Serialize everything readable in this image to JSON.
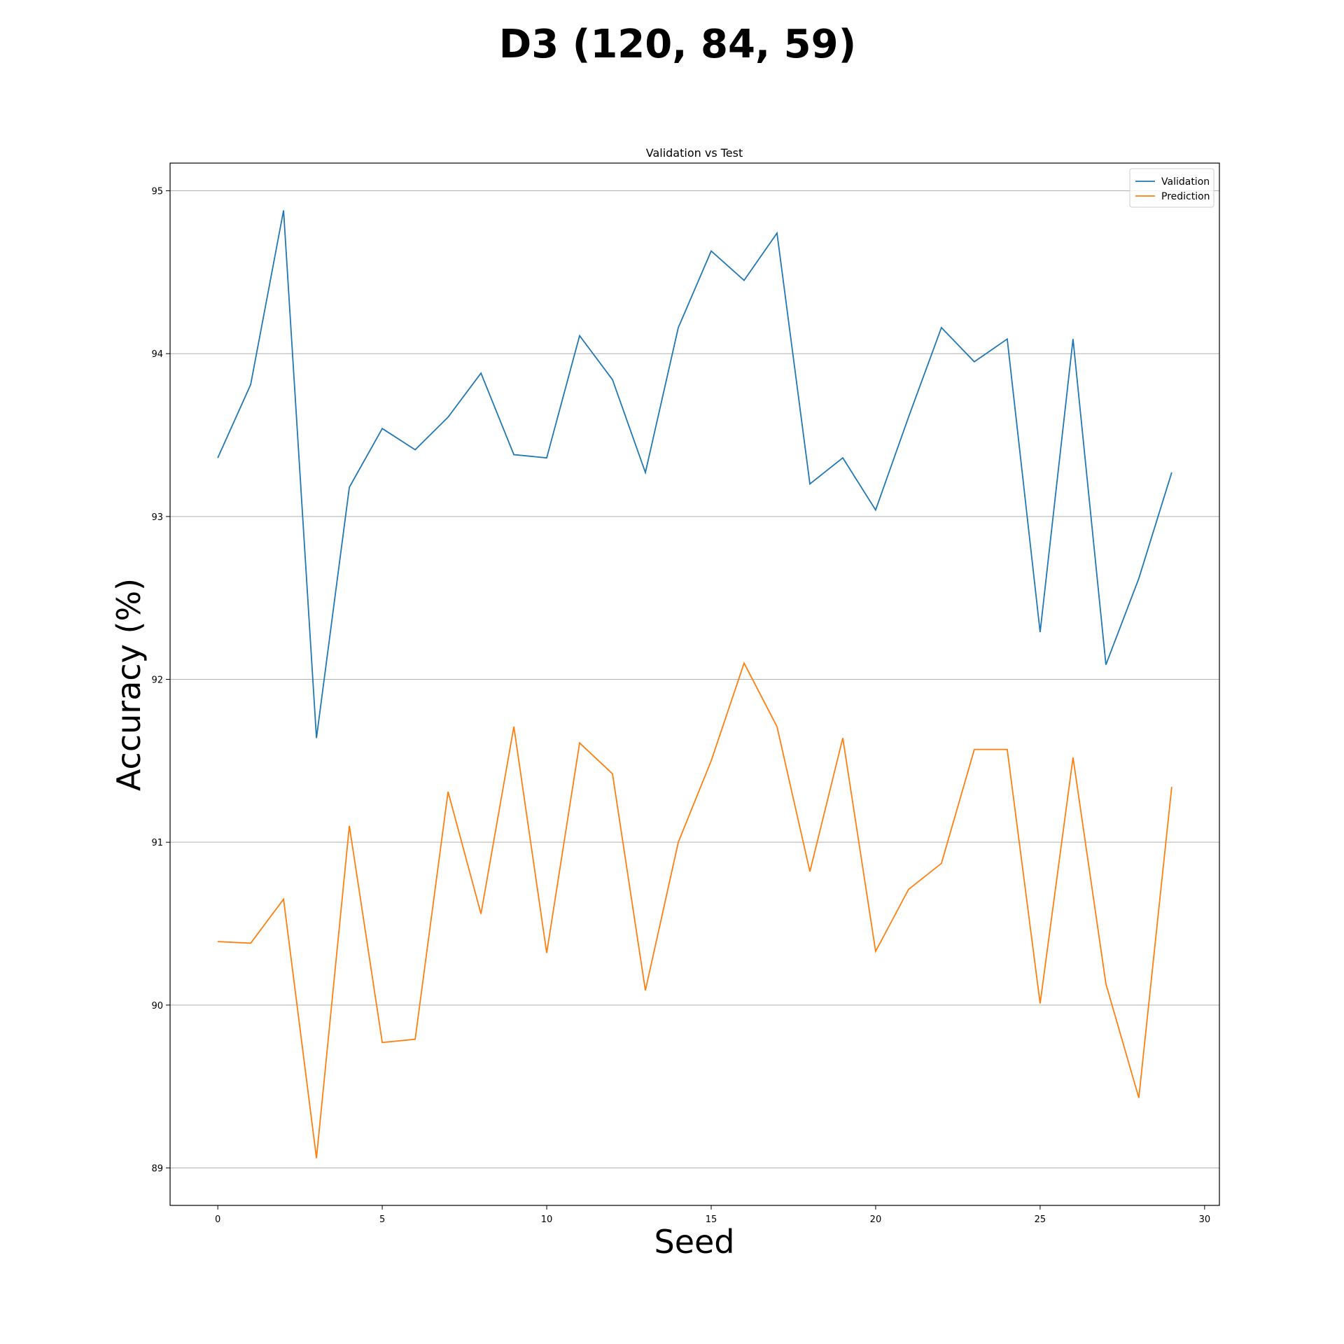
{
  "figure": {
    "suptitle": "D3 (120, 84, 59)"
  },
  "chart_data": {
    "type": "line",
    "title": "Validation vs Test",
    "xlabel": "Seed",
    "ylabel": "Accuracy (%)",
    "xlim": [
      -1.45,
      30.45
    ],
    "ylim": [
      88.77,
      95.17
    ],
    "xticks": [
      0,
      5,
      10,
      15,
      20,
      25,
      30
    ],
    "yticks": [
      89,
      90,
      91,
      92,
      93,
      94,
      95
    ],
    "grid": "y-major",
    "legend_position": "top-right",
    "x": [
      0,
      1,
      2,
      3,
      4,
      5,
      6,
      7,
      8,
      9,
      10,
      11,
      12,
      13,
      14,
      15,
      16,
      17,
      18,
      19,
      20,
      21,
      22,
      23,
      24,
      25,
      26,
      27,
      28,
      29
    ],
    "series": [
      {
        "name": "Validation",
        "color": "#1f77b4",
        "values": [
          93.36,
          93.81,
          94.88,
          91.64,
          93.18,
          93.54,
          93.41,
          93.61,
          93.88,
          93.38,
          93.36,
          94.11,
          93.84,
          93.27,
          94.16,
          94.63,
          94.45,
          94.74,
          93.2,
          93.36,
          93.04,
          93.61,
          94.16,
          93.95,
          94.09,
          92.29,
          94.09,
          92.09,
          92.62,
          93.27
        ]
      },
      {
        "name": "Prediction",
        "color": "#ff7f0e",
        "values": [
          90.39,
          90.38,
          90.65,
          89.06,
          91.1,
          89.77,
          89.79,
          91.31,
          90.56,
          91.71,
          90.32,
          91.61,
          91.42,
          90.09,
          91.0,
          91.5,
          92.1,
          91.71,
          90.82,
          91.64,
          90.33,
          90.71,
          90.87,
          91.57,
          91.57,
          90.01,
          91.52,
          90.13,
          89.43,
          91.34
        ]
      }
    ]
  }
}
